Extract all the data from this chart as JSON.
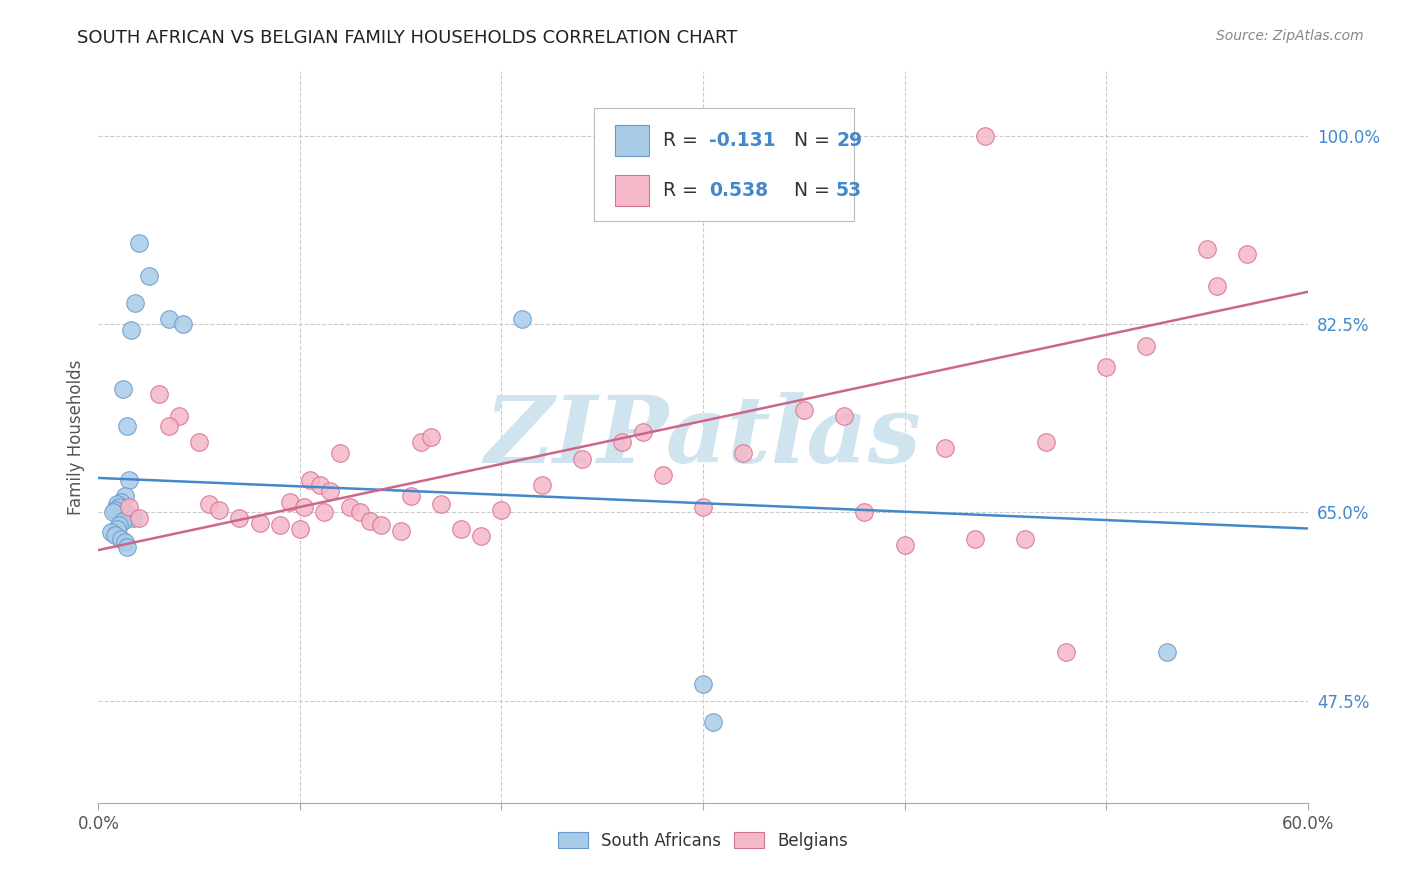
{
  "title": "SOUTH AFRICAN VS BELGIAN FAMILY HOUSEHOLDS CORRELATION CHART",
  "source": "Source: ZipAtlas.com",
  "ylabel": "Family Households",
  "yticks": [
    47.5,
    65.0,
    82.5,
    100.0
  ],
  "xlim": [
    0.0,
    60.0
  ],
  "ylim": [
    38.0,
    106.0
  ],
  "legend_label1": "South Africans",
  "legend_label2": "Belgians",
  "R1": "-0.131",
  "N1": "29",
  "R2": "0.538",
  "N2": "53",
  "color_blue": "#a8cce8",
  "color_blue_edge": "#6699cc",
  "color_pink": "#f5b8c8",
  "color_pink_edge": "#d47090",
  "color_blue_line": "#4488cc",
  "color_pink_line": "#cc6688",
  "color_axis_label": "#4488cc",
  "sa_x": [
    1.5,
    2.0,
    2.5,
    1.8,
    3.5,
    4.2,
    1.2,
    1.4,
    1.6,
    1.3,
    1.1,
    0.9,
    1.0,
    0.8,
    0.7,
    1.5,
    1.7,
    1.2,
    1.0,
    0.9,
    0.6,
    0.8,
    1.1,
    1.3,
    1.4,
    21.0,
    30.0,
    53.0,
    30.5
  ],
  "sa_y": [
    68.0,
    90.0,
    87.0,
    84.5,
    83.0,
    82.5,
    76.5,
    73.0,
    82.0,
    66.5,
    66.0,
    65.8,
    65.5,
    65.2,
    65.0,
    64.8,
    64.5,
    64.2,
    63.8,
    63.5,
    63.2,
    62.9,
    62.5,
    62.2,
    61.8,
    83.0,
    49.0,
    52.0,
    45.5
  ],
  "be_x": [
    1.5,
    2.0,
    3.0,
    4.0,
    5.0,
    5.5,
    6.0,
    7.0,
    8.0,
    9.0,
    10.0,
    10.5,
    11.0,
    11.5,
    12.0,
    12.5,
    13.0,
    13.5,
    14.0,
    15.0,
    15.5,
    16.0,
    16.5,
    17.0,
    18.0,
    19.0,
    20.0,
    22.0,
    24.0,
    26.0,
    27.0,
    28.0,
    30.0,
    32.0,
    35.0,
    37.0,
    38.0,
    40.0,
    42.0,
    43.5,
    44.0,
    46.0,
    47.0,
    48.0,
    50.0,
    52.0,
    55.0,
    55.5,
    57.0,
    3.5,
    9.5,
    10.2,
    11.2
  ],
  "be_y": [
    65.5,
    64.5,
    76.0,
    74.0,
    71.5,
    65.8,
    65.2,
    64.5,
    64.0,
    63.8,
    63.5,
    68.0,
    67.5,
    67.0,
    70.5,
    65.5,
    65.0,
    64.2,
    63.8,
    63.3,
    66.5,
    71.5,
    72.0,
    65.8,
    63.5,
    62.8,
    65.2,
    67.5,
    70.0,
    71.5,
    72.5,
    68.5,
    65.5,
    70.5,
    74.5,
    74.0,
    65.0,
    62.0,
    71.0,
    62.5,
    100.0,
    62.5,
    71.5,
    52.0,
    78.5,
    80.5,
    89.5,
    86.0,
    89.0,
    73.0,
    66.0,
    65.5,
    65.0
  ],
  "watermark_text": "ZIPatlas",
  "watermark_color": "#d0e4f0",
  "grid_color": "#cccccc",
  "spine_color": "#aaaaaa"
}
